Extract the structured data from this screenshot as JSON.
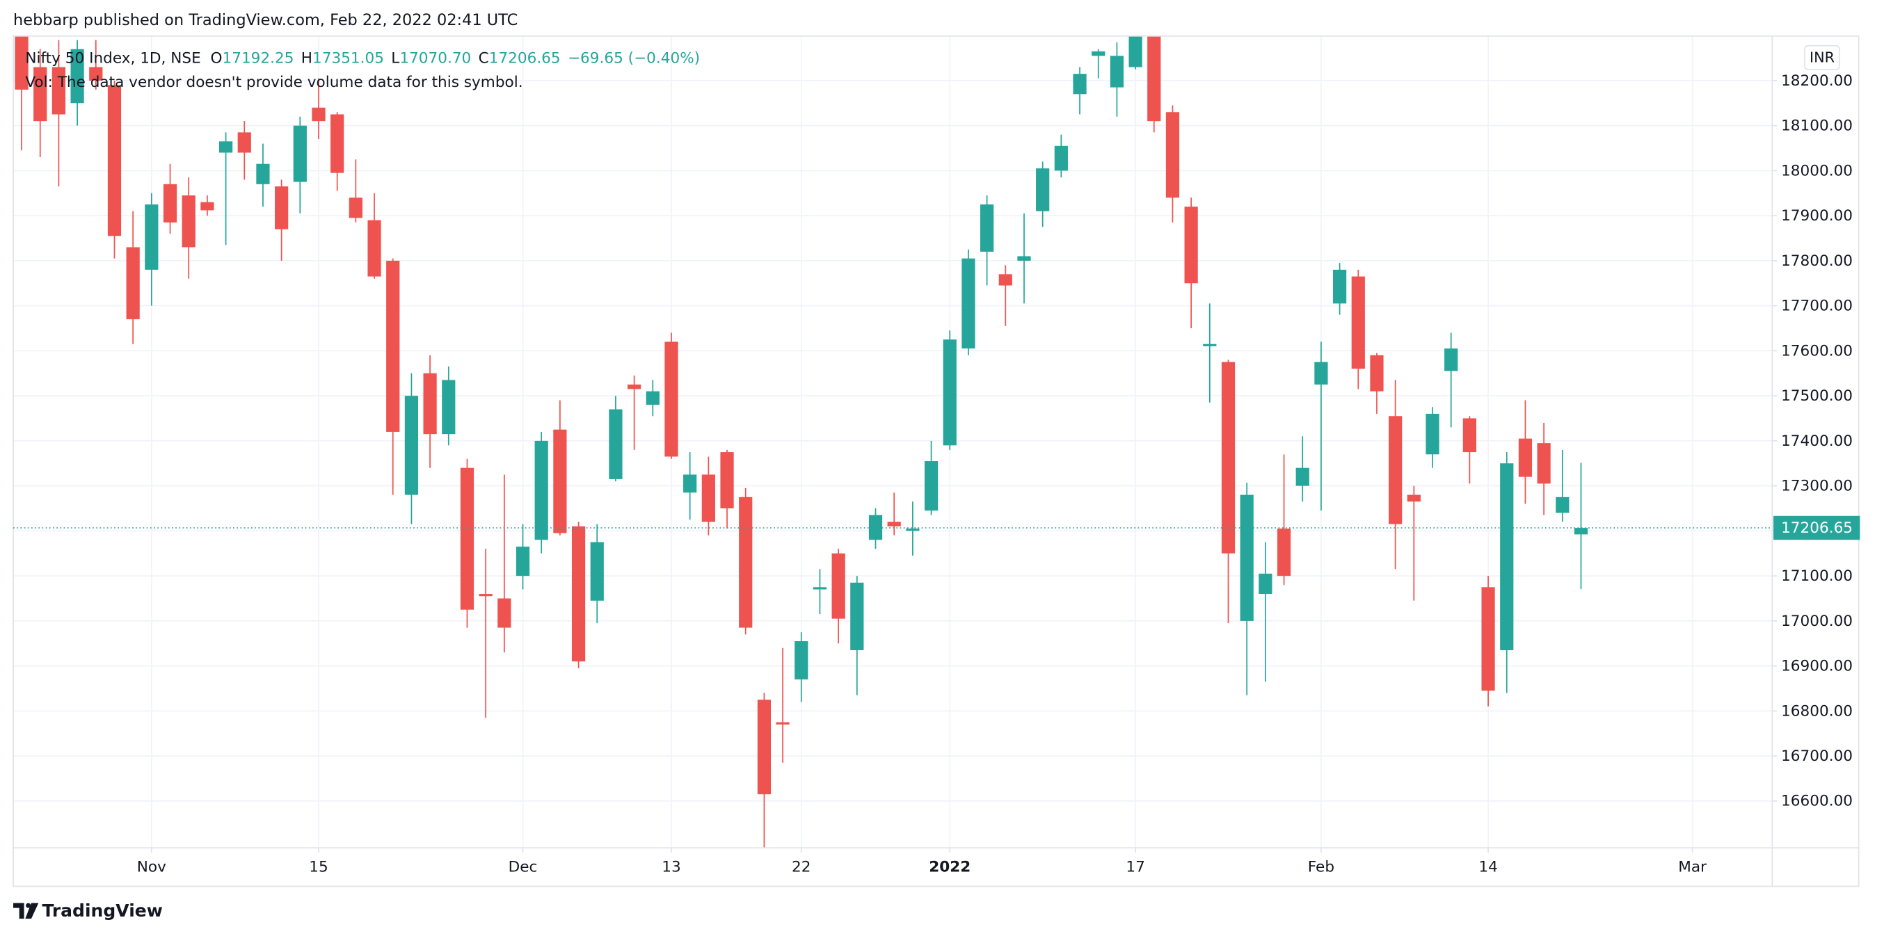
{
  "header": {
    "attribution": "hebbarp published on TradingView.com, Feb 22, 2022 02:41 UTC"
  },
  "chart_data": {
    "type": "candlestick",
    "legend": {
      "symbol": "Nifty 50 Index, 1D, NSE",
      "o_label": "O",
      "o": "17192.25",
      "h_label": "H",
      "h": "17351.05",
      "l_label": "L",
      "l": "17070.70",
      "c_label": "C",
      "c": "17206.65",
      "change": "−69.65 (−0.40%)",
      "volume_note": "Vol: The data vendor doesn't provide volume data for this symbol."
    },
    "currency": "INR",
    "up_color": "#26a69a",
    "down_color": "#ef5350",
    "open": [
      18320,
      18230,
      18230,
      18150,
      18230,
      18190,
      17830,
      17780,
      17970,
      17945,
      17930,
      18040,
      18085,
      17970,
      17965,
      17975,
      18140,
      18125,
      17940,
      17890,
      17800,
      17280,
      17550,
      17415,
      17340,
      17060,
      17050,
      17100,
      17180,
      17425,
      17210,
      17045,
      17315,
      17525,
      17480,
      17620,
      17285,
      17325,
      17375,
      17275,
      16825,
      16775,
      16870,
      17070,
      17150,
      16935,
      17180,
      17220,
      17200,
      17245,
      17390,
      17605,
      17820,
      17770,
      17800,
      17910,
      18000,
      18170,
      18255,
      18185,
      18230,
      18310,
      18130,
      17920,
      17610,
      17575,
      17000,
      17060,
      17205,
      17300,
      17525,
      17705,
      17765,
      17590,
      17455,
      17280,
      17370,
      17555,
      17450,
      17075,
      16935,
      17405,
      17395,
      17240,
      17192.25
    ],
    "high": [
      18380,
      18270,
      18290,
      18290,
      18290,
      18200,
      17910,
      17950,
      18015,
      17985,
      17945,
      18085,
      18110,
      18060,
      17980,
      18120,
      18205,
      18130,
      18025,
      17950,
      17805,
      17550,
      17590,
      17565,
      17360,
      17160,
      17325,
      17215,
      17420,
      17490,
      17220,
      17215,
      17500,
      17545,
      17535,
      17640,
      17375,
      17365,
      17380,
      17295,
      16840,
      16940,
      16975,
      17115,
      17160,
      17100,
      17250,
      17285,
      17265,
      17400,
      17645,
      17825,
      17945,
      17790,
      17905,
      18020,
      18080,
      18230,
      18270,
      18285,
      18350,
      18350,
      18145,
      17940,
      17705,
      17580,
      17307,
      17175,
      17370,
      17410,
      17620,
      17795,
      17780,
      17595,
      17535,
      17300,
      17475,
      17640,
      17455,
      17100,
      17375,
      17490,
      17440,
      17380,
      17351.05
    ],
    "low": [
      18045,
      18030,
      17965,
      18100,
      18180,
      17805,
      17615,
      17700,
      17860,
      17760,
      17900,
      17835,
      17980,
      17920,
      17800,
      17905,
      18070,
      17955,
      17885,
      17760,
      17280,
      17215,
      17340,
      17390,
      16985,
      16785,
      16930,
      17070,
      17150,
      17190,
      16895,
      16995,
      17310,
      17380,
      17455,
      17360,
      17225,
      17190,
      17205,
      16970,
      16485,
      16685,
      16820,
      17015,
      16950,
      16835,
      17160,
      17190,
      17145,
      17235,
      17380,
      17590,
      17745,
      17655,
      17705,
      17875,
      17985,
      18125,
      18205,
      18120,
      18225,
      18085,
      17885,
      17650,
      17485,
      16995,
      16835,
      16865,
      17080,
      17265,
      17245,
      17680,
      17515,
      17460,
      17115,
      17045,
      17340,
      17430,
      17305,
      16810,
      16840,
      17260,
      17235,
      17220,
      17070.7
    ],
    "close": [
      18180,
      18110,
      18125,
      18270,
      18200,
      17855,
      17670,
      17925,
      17885,
      17830,
      17912,
      18065,
      18040,
      18015,
      17870,
      18100,
      18110,
      17995,
      17895,
      17765,
      17420,
      17500,
      17415,
      17535,
      17025,
      17055,
      16985,
      17165,
      17400,
      17195,
      16910,
      17175,
      17470,
      17515,
      17510,
      17365,
      17325,
      17220,
      17250,
      16985,
      16615,
      16770,
      16955,
      17075,
      17005,
      17085,
      17235,
      17210,
      17205,
      17355,
      17625,
      17805,
      17925,
      17745,
      17810,
      18005,
      18055,
      18215,
      18265,
      18255,
      18320,
      18110,
      17940,
      17750,
      17615,
      17150,
      17280,
      17105,
      17100,
      17340,
      17575,
      17780,
      17560,
      17510,
      17215,
      17265,
      17460,
      17605,
      17375,
      16845,
      17350,
      17320,
      17305,
      17275,
      17206.65
    ],
    "xlim": [
      -0.45,
      94.3
    ],
    "xticks": [
      {
        "value": 7,
        "label": "Nov"
      },
      {
        "value": 16,
        "label": "15"
      },
      {
        "value": 27,
        "label": "Dec"
      },
      {
        "value": 35,
        "label": "13"
      },
      {
        "value": 42,
        "label": "22"
      },
      {
        "value": 50,
        "label": "2022"
      },
      {
        "value": 60,
        "label": "17"
      },
      {
        "value": 70,
        "label": "Feb"
      },
      {
        "value": 79,
        "label": "14"
      },
      {
        "value": 90,
        "label": "Mar"
      }
    ],
    "ylim": [
      16496,
      18299
    ],
    "yticks": [
      {
        "value": 16600,
        "label": "16600.00"
      },
      {
        "value": 16700,
        "label": "16700.00"
      },
      {
        "value": 16800,
        "label": "16800.00"
      },
      {
        "value": 16900,
        "label": "16900.00"
      },
      {
        "value": 17000,
        "label": "17000.00"
      },
      {
        "value": 17100,
        "label": "17100.00"
      },
      {
        "value": 17200,
        "label": "17200.00"
      },
      {
        "value": 17300,
        "label": "17300.00"
      },
      {
        "value": 17400,
        "label": "17400.00"
      },
      {
        "value": 17500,
        "label": "17500.00"
      },
      {
        "value": 17600,
        "label": "17600.00"
      },
      {
        "value": 17700,
        "label": "17700.00"
      },
      {
        "value": 17800,
        "label": "17800.00"
      },
      {
        "value": 17900,
        "label": "17900.00"
      },
      {
        "value": 18000,
        "label": "18000.00"
      },
      {
        "value": 18100,
        "label": "18100.00"
      },
      {
        "value": 18200,
        "label": "18200.00"
      }
    ],
    "grid": true,
    "last_price_line": true
  },
  "footer": {
    "brand": "TradingView"
  }
}
